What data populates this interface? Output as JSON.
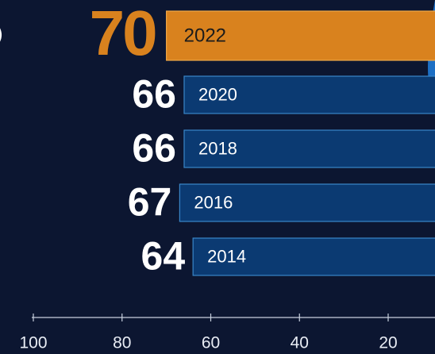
{
  "chart_data": {
    "type": "bar",
    "orientation": "horizontal",
    "categories": [
      "2022",
      "2020",
      "2018",
      "2016",
      "2014"
    ],
    "values": [
      70,
      66,
      66,
      67,
      64
    ],
    "colors": [
      "#d9821e",
      "#0b3a72",
      "#0b3a72",
      "#0b3a72",
      "#0b3a72"
    ],
    "xlim": [
      100,
      0
    ],
    "xticks": [
      100,
      80,
      60,
      40,
      20
    ]
  }
}
